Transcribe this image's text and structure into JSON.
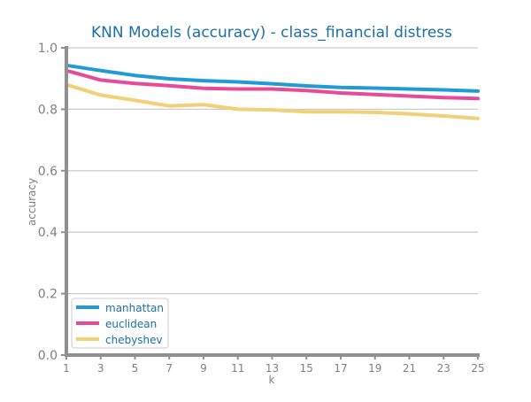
{
  "chart_data": {
    "type": "line",
    "title": "KNN Models (accuracy) - class_financial distress",
    "xlabel": "k",
    "ylabel": "accuracy",
    "x": [
      1,
      3,
      5,
      7,
      9,
      11,
      13,
      15,
      17,
      19,
      21,
      23,
      25
    ],
    "xticks": [
      "1",
      "3",
      "5",
      "7",
      "9",
      "11",
      "13",
      "15",
      "17",
      "19",
      "21",
      "23",
      "25"
    ],
    "yticks": [
      "0.0",
      "0.2",
      "0.4",
      "0.6",
      "0.8",
      "1.0"
    ],
    "ytick_values": [
      0.0,
      0.2,
      0.4,
      0.6,
      0.8,
      1.0
    ],
    "xlim": [
      1,
      25
    ],
    "ylim": [
      0,
      1.0
    ],
    "grid": "horizontal",
    "legend_position": "bottom-left",
    "series": [
      {
        "name": "manhattan",
        "color": "#1f9bd7",
        "values": [
          0.943,
          0.926,
          0.91,
          0.899,
          0.893,
          0.889,
          0.883,
          0.876,
          0.871,
          0.869,
          0.866,
          0.863,
          0.859
        ]
      },
      {
        "name": "euclidean",
        "color": "#e84a9a",
        "values": [
          0.926,
          0.895,
          0.884,
          0.877,
          0.868,
          0.866,
          0.866,
          0.861,
          0.853,
          0.848,
          0.843,
          0.838,
          0.835
        ]
      },
      {
        "name": "chebyshev",
        "color": "#f0d175",
        "values": [
          0.88,
          0.846,
          0.829,
          0.811,
          0.815,
          0.8,
          0.798,
          0.792,
          0.792,
          0.79,
          0.785,
          0.778,
          0.77
        ]
      }
    ]
  },
  "colors": {
    "title": "#1a6fa8",
    "tick_label": "#808080",
    "axis_label": "#808080",
    "axis_line": "#909090",
    "grid": "#cccccc",
    "legend_text": "#1a6fa8",
    "legend_border": "#cccccc"
  }
}
